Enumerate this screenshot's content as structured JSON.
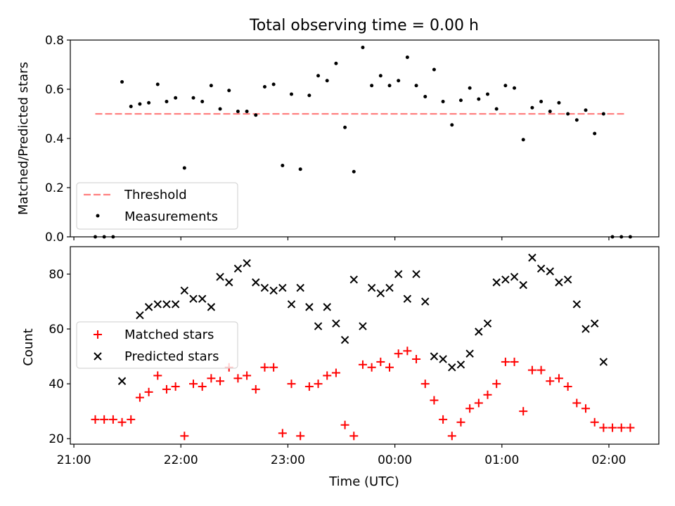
{
  "title": "Total observing time = 0.00 h",
  "xlabel": "Time (UTC)",
  "x_tick_labels": [
    "21:00",
    "22:00",
    "23:00",
    "00:00",
    "01:00",
    "02:00"
  ],
  "chart_data": [
    {
      "type": "scatter",
      "ylabel": "Matched/Predicted stars",
      "ylim": [
        0,
        0.8
      ],
      "y_ticks": [
        0.0,
        0.2,
        0.4,
        0.6,
        0.8
      ],
      "y_tick_labels": [
        "0.0",
        "0.2",
        "0.4",
        "0.6",
        "0.8"
      ],
      "xlim_minutes_after_2100": [
        -2,
        328
      ],
      "legend_position": "lower-left",
      "threshold": {
        "name": "Threshold",
        "value": 0.5,
        "x_start": "21:12",
        "x_end": "02:10",
        "color": "#ff7f7f"
      },
      "series": [
        {
          "name": "Measurements",
          "color": "#000000",
          "x": [
            "21:12",
            "21:17",
            "21:22",
            "21:27",
            "21:32",
            "21:37",
            "21:42",
            "21:47",
            "21:52",
            "21:57",
            "22:02",
            "22:07",
            "22:12",
            "22:17",
            "22:22",
            "22:27",
            "22:32",
            "22:37",
            "22:42",
            "22:47",
            "22:52",
            "22:57",
            "23:02",
            "23:07",
            "23:12",
            "23:17",
            "23:22",
            "23:27",
            "23:32",
            "23:37",
            "23:42",
            "23:47",
            "23:52",
            "23:57",
            "00:02",
            "00:07",
            "00:12",
            "00:17",
            "00:22",
            "00:27",
            "00:32",
            "00:37",
            "00:42",
            "00:47",
            "00:52",
            "00:57",
            "01:02",
            "01:07",
            "01:12",
            "01:17",
            "01:22",
            "01:27",
            "01:32",
            "01:37",
            "01:42",
            "01:47",
            "01:52",
            "01:57",
            "02:02",
            "02:07",
            "02:12"
          ],
          "y": [
            0.0,
            0.0,
            0.0,
            0.63,
            0.53,
            0.54,
            0.545,
            0.62,
            0.55,
            0.565,
            0.28,
            0.565,
            0.55,
            0.615,
            0.52,
            0.595,
            0.51,
            0.51,
            0.495,
            0.61,
            0.62,
            0.29,
            0.58,
            0.275,
            0.575,
            0.655,
            0.635,
            0.705,
            0.445,
            0.265,
            0.77,
            0.615,
            0.655,
            0.615,
            0.635,
            0.73,
            0.615,
            0.57,
            0.68,
            0.55,
            0.455,
            0.555,
            0.605,
            0.56,
            0.58,
            0.52,
            0.615,
            0.605,
            0.395,
            0.525,
            0.55,
            0.51,
            0.545,
            0.5,
            0.475,
            0.515,
            0.42,
            0.5,
            0.0,
            0.0,
            0.0
          ]
        }
      ]
    },
    {
      "type": "scatter",
      "ylabel": "Count",
      "ylim": [
        18,
        90
      ],
      "y_ticks": [
        20,
        40,
        60,
        80
      ],
      "y_tick_labels": [
        "20",
        "40",
        "60",
        "80"
      ],
      "xlim_minutes_after_2100": [
        -2,
        328
      ],
      "legend_position": "center-left",
      "series": [
        {
          "name": "Matched stars",
          "marker": "+",
          "color": "#ff0000",
          "x": [
            "21:12",
            "21:17",
            "21:22",
            "21:27",
            "21:32",
            "21:37",
            "21:42",
            "21:47",
            "21:52",
            "21:57",
            "22:02",
            "22:07",
            "22:12",
            "22:17",
            "22:22",
            "22:27",
            "22:32",
            "22:37",
            "22:42",
            "22:47",
            "22:52",
            "22:57",
            "23:02",
            "23:07",
            "23:12",
            "23:17",
            "23:22",
            "23:27",
            "23:32",
            "23:37",
            "23:42",
            "23:47",
            "23:52",
            "23:57",
            "00:02",
            "00:07",
            "00:12",
            "00:17",
            "00:22",
            "00:27",
            "00:32",
            "00:37",
            "00:42",
            "00:47",
            "00:52",
            "00:57",
            "01:02",
            "01:07",
            "01:12",
            "01:17",
            "01:22",
            "01:27",
            "01:32",
            "01:37",
            "01:42",
            "01:47",
            "01:52",
            "01:57",
            "02:02",
            "02:07",
            "02:12"
          ],
          "y": [
            27,
            27,
            27,
            26,
            27,
            35,
            37,
            43,
            38,
            39,
            21,
            40,
            39,
            42,
            41,
            46,
            42,
            43,
            38,
            46,
            46,
            22,
            40,
            21,
            39,
            40,
            43,
            44,
            25,
            21,
            47,
            46,
            48,
            46,
            51,
            52,
            49,
            40,
            34,
            27,
            21,
            26,
            31,
            33,
            36,
            40,
            48,
            48,
            30,
            45,
            45,
            41,
            42,
            39,
            33,
            31,
            26,
            24,
            24,
            24,
            24
          ]
        },
        {
          "name": "Predicted stars",
          "marker": "x",
          "color": "#000000",
          "x": [
            "21:27",
            "21:37",
            "21:42",
            "21:47",
            "21:52",
            "21:57",
            "22:02",
            "22:07",
            "22:12",
            "22:17",
            "22:22",
            "22:27",
            "22:32",
            "22:37",
            "22:42",
            "22:47",
            "22:52",
            "22:57",
            "23:02",
            "23:07",
            "23:12",
            "23:17",
            "23:22",
            "23:27",
            "23:32",
            "23:37",
            "23:42",
            "23:47",
            "23:52",
            "23:57",
            "00:02",
            "00:07",
            "00:12",
            "00:17",
            "00:22",
            "00:27",
            "00:32",
            "00:37",
            "00:42",
            "00:47",
            "00:52",
            "00:57",
            "01:02",
            "01:07",
            "01:12",
            "01:17",
            "01:22",
            "01:27",
            "01:32",
            "01:37",
            "01:42",
            "01:47",
            "01:52",
            "01:57"
          ],
          "y": [
            41,
            65,
            68,
            69,
            69,
            69,
            74,
            71,
            71,
            68,
            79,
            77,
            82,
            84,
            77,
            75,
            74,
            75,
            69,
            75,
            68,
            61,
            68,
            62,
            56,
            78,
            61,
            75,
            73,
            75,
            80,
            71,
            80,
            70,
            50,
            49,
            46,
            47,
            51,
            59,
            62,
            77,
            78,
            79,
            76,
            86,
            82,
            81,
            77,
            78,
            69,
            60,
            62,
            48
          ]
        }
      ]
    }
  ]
}
